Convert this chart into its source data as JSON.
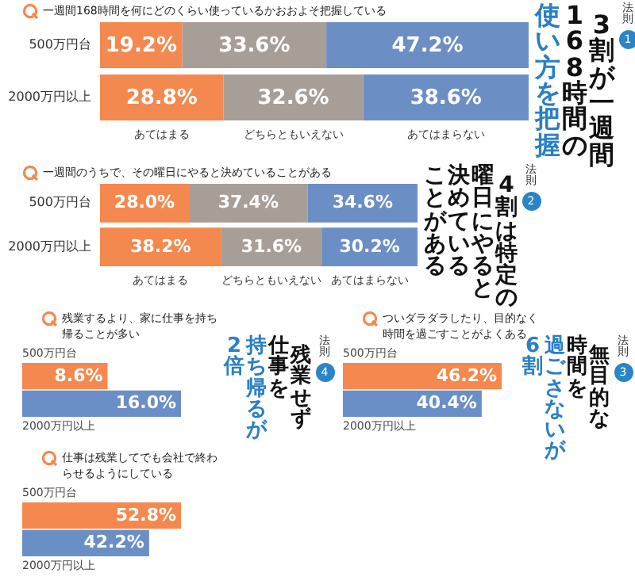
{
  "chart_data": [
    {
      "type": "bar",
      "orientation": "horizontal",
      "stacked": true,
      "title": "一週間168時間を何にどのくらい使っているかおおよそ把握している",
      "categories": [
        "500万円台",
        "2000万円以上"
      ],
      "series": [
        {
          "name": "あてはまる",
          "color": "#f4894f",
          "values": [
            19.2,
            28.8
          ],
          "value_labels": [
            "19.2%",
            "28.8%"
          ]
        },
        {
          "name": "どちらともいえない",
          "color": "#a89e98",
          "values": [
            33.6,
            32.6
          ],
          "value_labels": [
            "33.6%",
            "32.6%"
          ]
        },
        {
          "name": "あてはまらない",
          "color": "#6b8fc4",
          "values": [
            47.2,
            38.6
          ],
          "value_labels": [
            "47.2%",
            "38.6%"
          ]
        }
      ],
      "annotations": [
        "法則",
        "1",
        "3割が一週間",
        "168時間の",
        "使い方を把握"
      ]
    },
    {
      "type": "bar",
      "orientation": "horizontal",
      "stacked": true,
      "title": "一週間のうちで、その曜日にやると決めていることがある",
      "categories": [
        "500万円台",
        "2000万円以上"
      ],
      "series": [
        {
          "name": "あてはまる",
          "color": "#f4894f",
          "values": [
            28.0,
            38.2
          ],
          "value_labels": [
            "28.0%",
            "38.2%"
          ]
        },
        {
          "name": "どちらともいえない",
          "color": "#a89e98",
          "values": [
            37.4,
            31.6
          ],
          "value_labels": [
            "37.4%",
            "31.6%"
          ]
        },
        {
          "name": "あてはまらない",
          "color": "#6b8fc4",
          "values": [
            34.6,
            30.2
          ],
          "value_labels": [
            "34.6%",
            "30.2%"
          ]
        }
      ],
      "annotations": [
        "法則",
        "2",
        "4割は特定の",
        "曜日にやると",
        "決めている",
        "ことがある"
      ]
    },
    {
      "type": "bar",
      "orientation": "horizontal",
      "title": "残業するより、家に仕事を持ち帰ることが多い",
      "categories": [
        "500万円台",
        "2000万円以上"
      ],
      "values": [
        8.6,
        16.0
      ],
      "colors": [
        "#f4884e",
        "#6a8ec6"
      ],
      "value_labels": [
        "8.6%",
        "16.0%"
      ],
      "annotations": [
        "法則",
        "4",
        "残業せず",
        "仕事を",
        "持ち帰るが",
        "2倍"
      ]
    },
    {
      "type": "bar",
      "orientation": "horizontal",
      "title": "ついダラダラしたり、目的なく時間を過ごすことがよくある",
      "categories": [
        "500万円台",
        "2000万円以上"
      ],
      "values": [
        46.2,
        40.4
      ],
      "colors": [
        "#f4884e",
        "#6a8ec6"
      ],
      "value_labels": [
        "46.2%",
        "40.4%"
      ],
      "annotations": [
        "法則",
        "3",
        "無目的な",
        "時間を",
        "過ごさないが",
        "6割"
      ]
    },
    {
      "type": "bar",
      "orientation": "horizontal",
      "title": "仕事は残業してでも会社で終わらせるようにしている",
      "categories": [
        "500万円台",
        "2000万円以上"
      ],
      "values": [
        52.8,
        42.2
      ],
      "colors": [
        "#f4884e",
        "#6a8ec6"
      ],
      "value_labels": [
        "52.8%",
        "42.2%"
      ]
    }
  ]
}
